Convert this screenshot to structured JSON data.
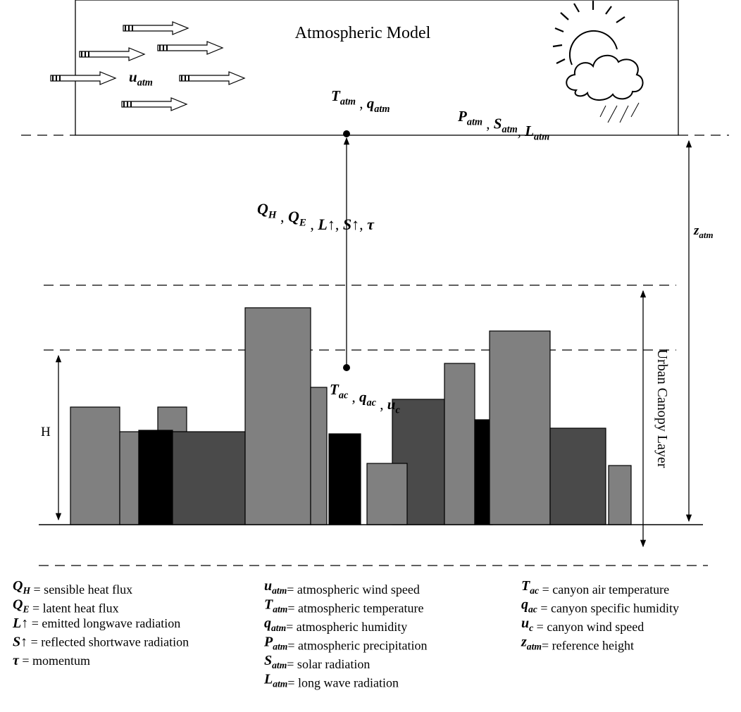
{
  "atmosphere": {
    "title": "Atmospheric Model",
    "wind_label": [
      {
        "sym": "u",
        "sub": "atm"
      }
    ],
    "state_label": [
      {
        "sym": "T",
        "sub": "atm"
      },
      " ,  ",
      {
        "sym": "q",
        "sub": "atm"
      }
    ],
    "forcing_label": [
      {
        "sym": "P",
        "sub": "atm"
      },
      " , ",
      {
        "sym": "S",
        "sub": "atm"
      },
      ", ",
      {
        "sym": "L",
        "sub": "atm"
      }
    ]
  },
  "fluxes_label": [
    {
      "sym": "Q",
      "sub": "H"
    },
    " , ",
    {
      "sym": "Q",
      "sub": "E"
    },
    " , ",
    {
      "sym": "L"
    },
    "↑,  ",
    {
      "sym": "S"
    },
    "↑, ",
    {
      "sym": "τ"
    }
  ],
  "reference_height_label": [
    {
      "sym": "z",
      "sub": "atm"
    }
  ],
  "canopy_label": "Urban Canopy Layer",
  "building_height_label": "H",
  "canyon_label": [
    {
      "sym": "T",
      "sub": "ac"
    },
    " , ",
    {
      "sym": "q",
      "sub": "ac"
    },
    " , ",
    {
      "sym": "u",
      "sub": "c"
    }
  ],
  "legend": [
    [
      {
        "symbol": [
          {
            "sym": "Q",
            "sub": "H"
          }
        ],
        "definition": " = sensible heat flux"
      },
      {
        "symbol": [
          {
            "sym": "Q",
            "sub": "E"
          }
        ],
        "definition": " = latent heat flux"
      },
      {
        "symbol": [
          {
            "sym": "L"
          },
          "↑"
        ],
        "definition": " = emitted longwave radiation"
      },
      {
        "symbol": [
          {
            "sym": "S"
          },
          "↑"
        ],
        "definition": " = reflected shortwave radiation"
      },
      {
        "symbol": [
          {
            "sym": "τ"
          }
        ],
        "definition": " = momentum"
      }
    ],
    [
      {
        "symbol": [
          {
            "sym": "u",
            "sub": "atm"
          }
        ],
        "definition": "= atmospheric wind speed"
      },
      {
        "symbol": [
          {
            "sym": "T",
            "sub": "atm"
          }
        ],
        "definition": "= atmospheric temperature"
      },
      {
        "symbol": [
          {
            "sym": "q",
            "sub": "atm"
          }
        ],
        "definition": "= atmospheric humidity"
      },
      {
        "symbol": [
          {
            "sym": "P",
            "sub": "atm"
          }
        ],
        "definition": "= atmospheric precipitation"
      },
      {
        "symbol": [
          {
            "sym": "S",
            "sub": "atm"
          }
        ],
        "definition": "= solar radiation"
      },
      {
        "symbol": [
          {
            "sym": "L",
            "sub": "atm"
          }
        ],
        "definition": "= long wave radiation"
      }
    ],
    [
      {
        "symbol": [
          {
            "sym": "T",
            "sub": "ac"
          }
        ],
        "definition": " = canyon air temperature"
      },
      {
        "symbol": [
          {
            "sym": "q",
            "sub": "ac"
          }
        ],
        "definition": " = canyon specific humidity"
      },
      {
        "symbol": [
          {
            "sym": "u",
            "sub": "c"
          }
        ],
        "definition": " = canyon wind speed"
      },
      {
        "symbol": [
          {
            "sym": "z",
            "sub": "atm"
          }
        ],
        "definition": "= reference height"
      }
    ]
  ]
}
